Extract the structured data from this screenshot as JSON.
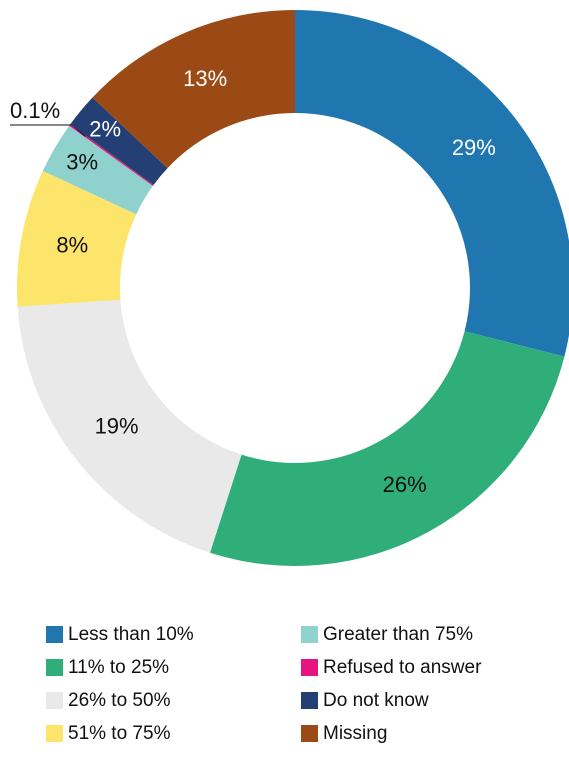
{
  "chart_data": {
    "type": "donut",
    "categories": [
      "Less than 10%",
      "11% to 25%",
      "26% to 50%",
      "51% to 75%",
      "Greater than 75%",
      "Refused to answer",
      "Do not know",
      "Missing"
    ],
    "values": [
      29,
      26,
      19,
      8,
      3,
      0.1,
      2,
      13
    ],
    "value_labels": [
      "29%",
      "26%",
      "19%",
      "8%",
      "3%",
      "0.1%",
      "2%",
      "13%"
    ],
    "colors": [
      "#2077b0",
      "#30ae7a",
      "#e9e9e9",
      "#fde46a",
      "#8fd1cc",
      "#e6147f",
      "#233f73",
      "#9c4a15"
    ],
    "legend": "bottom"
  }
}
